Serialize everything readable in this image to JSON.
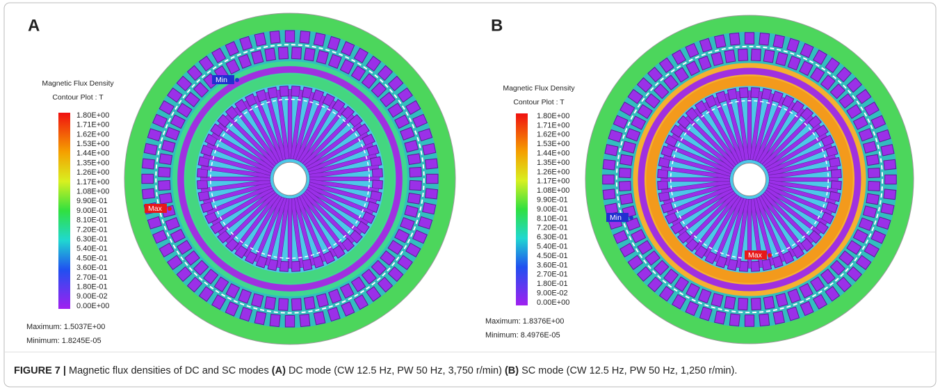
{
  "panels": [
    {
      "label": "A",
      "legend_title": [
        "Magnetic Flux Density",
        "Contour Plot : T"
      ],
      "scale": [
        "1.80E+00",
        "1.71E+00",
        "1.62E+00",
        "1.53E+00",
        "1.44E+00",
        "1.35E+00",
        "1.26E+00",
        "1.17E+00",
        "1.08E+00",
        "9.90E-01",
        "9.00E-01",
        "8.10E-01",
        "7.20E-01",
        "6.30E-01",
        "5.40E-01",
        "4.50E-01",
        "3.60E-01",
        "2.70E-01",
        "1.80E-01",
        "9.00E-02",
        "0.00E+00"
      ],
      "maximum": "Maximum: 1.5037E+00",
      "minimum": "Minimum: 1.8245E-05",
      "max_marker": "Max",
      "min_marker": "Min"
    },
    {
      "label": "B",
      "legend_title": [
        "Magnetic Flux Density",
        "Contour Plot : T"
      ],
      "scale": [
        "1.80E+00",
        "1.71E+00",
        "1.62E+00",
        "1.53E+00",
        "1.44E+00",
        "1.35E+00",
        "1.26E+00",
        "1.17E+00",
        "1.08E+00",
        "9.90E-01",
        "9.00E-01",
        "8.10E-01",
        "7.20E-01",
        "6.30E-01",
        "5.40E-01",
        "4.50E-01",
        "3.60E-01",
        "2.70E-01",
        "1.80E-01",
        "9.00E-02",
        "0.00E+00"
      ],
      "maximum": "Maximum: 1.8376E+00",
      "minimum": "Minimum: 8.4976E-05",
      "max_marker": "Max",
      "min_marker": "Min"
    }
  ],
  "caption": {
    "figure": "FIGURE 7 |",
    "text": "Magnetic flux densities of DC and SC modes",
    "a_label": "(A)",
    "a_text": "DC mode (CW 12.5 Hz, PW 50 Hz, 3,750 r/min)",
    "b_label": "(B)",
    "b_text": "SC mode (CW 12.5 Hz, PW 50 Hz, 1,250 r/min)."
  }
}
